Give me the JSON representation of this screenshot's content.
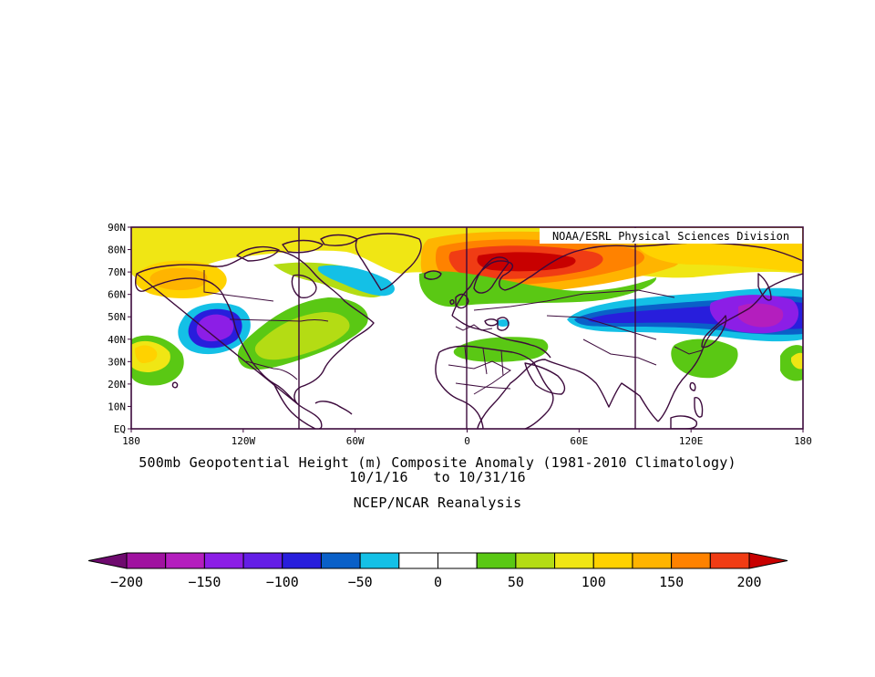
{
  "map": {
    "credit": "NOAA/ESRL Physical Sciences Division",
    "lat_labels": [
      "90N",
      "80N",
      "70N",
      "60N",
      "50N",
      "40N",
      "30N",
      "20N",
      "10N",
      "EQ"
    ],
    "lon_labels": [
      "180",
      "120W",
      "60W",
      "0",
      "60E",
      "120E",
      "180"
    ],
    "lat_range": [
      0,
      90
    ],
    "lon_range": [
      -180,
      180
    ],
    "grid_meridians": [
      -90,
      0,
      90
    ],
    "anomaly_fields": [
      {
        "region": "Arctic / Scandinavia / Northwest Russia",
        "lon": 30,
        "lat": 74,
        "value": 200
      },
      {
        "region": "Greenland / Arctic Ocean",
        "lon": -60,
        "lat": 84,
        "value": 75
      },
      {
        "region": "Alaska",
        "lon": -150,
        "lat": 68,
        "value": 125
      },
      {
        "region": "Central Siberia / Arctic",
        "lon": 100,
        "lat": 80,
        "value": 100
      },
      {
        "region": "Northeast Pacific (off British Columbia)",
        "lon": -134,
        "lat": 44,
        "value": -175
      },
      {
        "region": "North Pacific (Kamchatka / Kuril)",
        "lon": 155,
        "lat": 49,
        "value": -175
      },
      {
        "region": "Central Asia / Mongolia",
        "lon": 75,
        "lat": 51,
        "value": -125
      },
      {
        "region": "Labrador Sea",
        "lon": -50,
        "lat": 64,
        "value": -50
      },
      {
        "region": "Eastern North America",
        "lon": -80,
        "lat": 45,
        "value": 60
      },
      {
        "region": "Eastern Mediterranean / Middle East",
        "lon": 30,
        "lat": 38,
        "value": 50
      },
      {
        "region": "Subtropical North Pacific",
        "lon": -165,
        "lat": 32,
        "value": 100
      },
      {
        "region": "Eastern China / Korea",
        "lon": 123,
        "lat": 35,
        "value": 60
      },
      {
        "region": "Western Pacific subtropics",
        "lon": 175,
        "lat": 28,
        "value": 60
      }
    ]
  },
  "titles": {
    "line1": "500mb Geopotential Height (m) Composite Anomaly (1981-2010 Climatology)",
    "line2": "10/1/16   to 10/31/16",
    "line3": "NCEP/NCAR Reanalysis"
  },
  "colorbar": {
    "colors": [
      "#6e0a6e",
      "#a012a0",
      "#b41ebe",
      "#8c1ee6",
      "#641ee6",
      "#281edc",
      "#0a60c8",
      "#14c0e6",
      "#ffffff",
      "#ffffff",
      "#5ac814",
      "#b4dc14",
      "#f0e614",
      "#ffd200",
      "#ffb400",
      "#ff8200",
      "#f03c14",
      "#c80000"
    ],
    "tick_values": [
      "-200",
      "-150",
      "-100",
      "-50",
      "0",
      "50",
      "100",
      "150",
      "200"
    ]
  }
}
